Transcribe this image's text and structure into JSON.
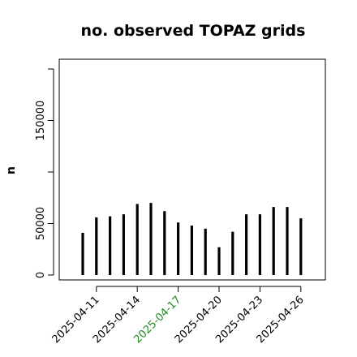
{
  "chart_data": {
    "type": "bar",
    "title": "no. observed TOPAZ grids",
    "xlabel": "",
    "ylabel": "n",
    "ylim": [
      0,
      210000
    ],
    "yticks": [
      0,
      50000,
      150000
    ],
    "y_minor_ticks": [
      100000,
      200000
    ],
    "x_tick_labels": [
      {
        "text": "2025-04-11",
        "color": "#000000"
      },
      {
        "text": "2025-04-14",
        "color": "#000000"
      },
      {
        "text": "2025-04-17",
        "color": "#228B22"
      },
      {
        "text": "2025-04-20",
        "color": "#000000"
      },
      {
        "text": "2025-04-23",
        "color": "#000000"
      },
      {
        "text": "2025-04-26",
        "color": "#000000"
      }
    ],
    "categories": [
      "2025-04-10",
      "2025-04-11",
      "2025-04-12",
      "2025-04-13",
      "2025-04-14",
      "2025-04-15",
      "2025-04-16",
      "2025-04-17",
      "2025-04-18",
      "2025-04-19",
      "2025-04-20",
      "2025-04-21",
      "2025-04-22",
      "2025-04-23",
      "2025-04-24",
      "2025-04-25",
      "2025-04-26",
      "2025-04-27"
    ],
    "values": [
      41000,
      56000,
      57000,
      59000,
      69000,
      70000,
      62000,
      51000,
      48000,
      45000,
      27000,
      42000,
      59000,
      59000,
      66000,
      66000,
      55000,
      0
    ],
    "grid": false,
    "bar_color": "#000000"
  }
}
